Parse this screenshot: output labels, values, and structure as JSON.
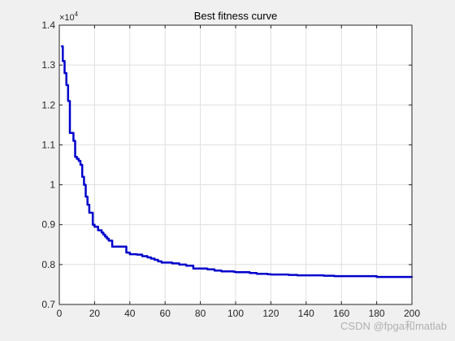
{
  "chart_data": {
    "type": "line",
    "title": "Best fitness curve",
    "xlabel": "",
    "ylabel": "",
    "xlim": [
      0,
      200
    ],
    "ylim": [
      0.7,
      1.4
    ],
    "y_exponent_label": "×10",
    "y_exponent_power": "4",
    "x_ticks": [
      {
        "value": 0,
        "label": "0"
      },
      {
        "value": 20,
        "label": "20"
      },
      {
        "value": 40,
        "label": "40"
      },
      {
        "value": 60,
        "label": "60"
      },
      {
        "value": 80,
        "label": "80"
      },
      {
        "value": 100,
        "label": "100"
      },
      {
        "value": 120,
        "label": "120"
      },
      {
        "value": 140,
        "label": "140"
      },
      {
        "value": 160,
        "label": "160"
      },
      {
        "value": 180,
        "label": "180"
      },
      {
        "value": 200,
        "label": "200"
      }
    ],
    "y_ticks": [
      {
        "value": 0.7,
        "label": "0.7"
      },
      {
        "value": 0.8,
        "label": "0.8"
      },
      {
        "value": 0.9,
        "label": "0.9"
      },
      {
        "value": 1.0,
        "label": "1"
      },
      {
        "value": 1.1,
        "label": "1.1"
      },
      {
        "value": 1.2,
        "label": "1.2"
      },
      {
        "value": 1.3,
        "label": "1.3"
      },
      {
        "value": 1.4,
        "label": "1.4"
      }
    ],
    "grid": true,
    "line_color": "#0000cc",
    "series": [
      {
        "x": [
          1,
          2,
          3,
          4,
          5,
          6,
          7,
          8,
          9,
          10,
          11,
          12,
          13,
          14,
          15,
          16,
          17,
          18,
          19,
          20,
          22,
          24,
          25,
          26,
          27,
          28,
          30,
          32,
          34,
          36,
          38,
          39,
          40,
          44,
          47,
          50,
          52,
          54,
          56,
          58,
          60,
          64,
          68,
          70,
          72,
          75,
          76,
          78,
          84,
          88,
          90,
          92,
          96,
          99,
          100,
          103,
          108,
          112,
          118,
          120,
          130,
          135,
          150,
          156,
          170,
          178,
          180,
          190,
          200
        ],
        "y": [
          1.347,
          1.31,
          1.28,
          1.25,
          1.21,
          1.13,
          1.13,
          1.11,
          1.07,
          1.065,
          1.06,
          1.05,
          1.02,
          1.0,
          0.97,
          0.95,
          0.93,
          0.93,
          0.9,
          0.895,
          0.886,
          0.88,
          0.875,
          0.87,
          0.865,
          0.86,
          0.845,
          0.845,
          0.845,
          0.845,
          0.83,
          0.83,
          0.826,
          0.825,
          0.821,
          0.818,
          0.815,
          0.812,
          0.808,
          0.805,
          0.805,
          0.803,
          0.8,
          0.8,
          0.797,
          0.797,
          0.79,
          0.79,
          0.788,
          0.785,
          0.785,
          0.783,
          0.783,
          0.782,
          0.781,
          0.781,
          0.779,
          0.777,
          0.776,
          0.775,
          0.774,
          0.773,
          0.772,
          0.771,
          0.771,
          0.771,
          0.769,
          0.769,
          0.768
        ]
      }
    ]
  },
  "watermark": "CSDN @fpga和matlab"
}
